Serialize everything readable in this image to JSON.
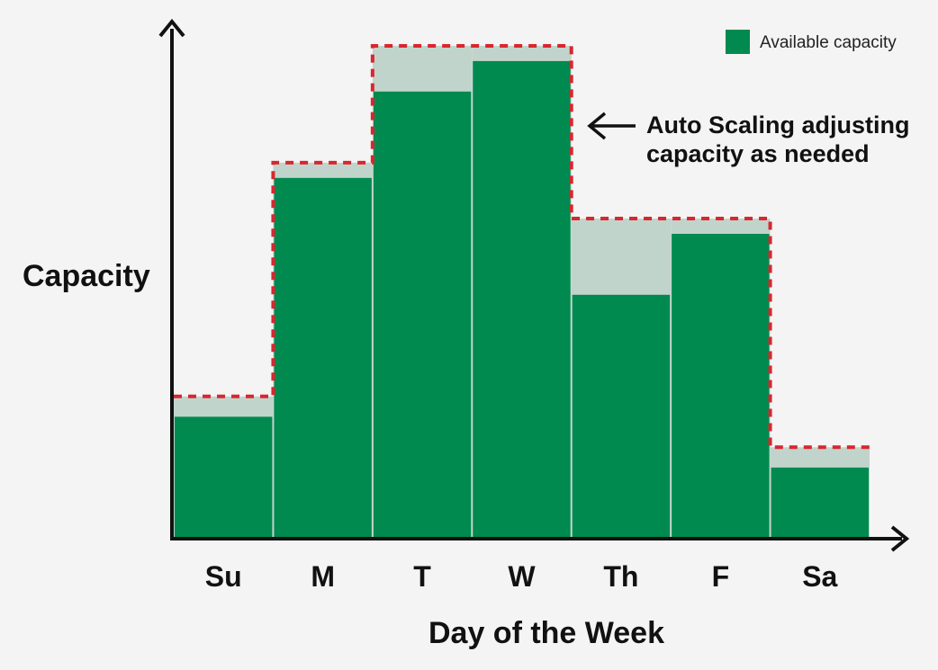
{
  "chart_data": {
    "type": "bar",
    "title": "",
    "xlabel": "Day of the Week",
    "ylabel": "Capacity",
    "categories": [
      "Su",
      "M",
      "T",
      "W",
      "Th",
      "F",
      "Sa"
    ],
    "series": [
      {
        "name": "Available capacity",
        "values": [
          24,
          71,
          88,
          94,
          48,
          60,
          14
        ]
      }
    ],
    "scaling_capacity": [
      28,
      74,
      97,
      97,
      63,
      63,
      18
    ],
    "ylim": [
      0,
      100
    ],
    "grid": false,
    "legend_position": "top-right",
    "annotation": {
      "line1": "Auto Scaling adjusting",
      "line2": "capacity as needed"
    },
    "colors": {
      "bar": "#008a4f",
      "headroom": "#c1d4cb",
      "scaling_line": "#d9262f",
      "axis": "#111111",
      "background": "#f4f4f4"
    }
  }
}
